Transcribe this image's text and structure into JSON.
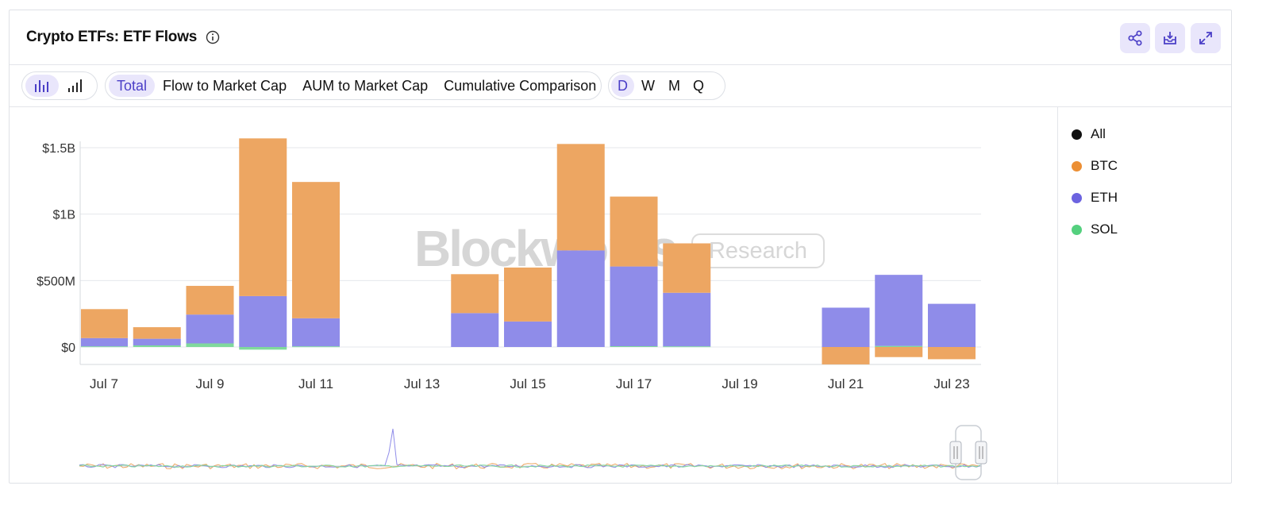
{
  "header": {
    "title": "Crypto ETFs: ETF Flows"
  },
  "toolbar": {
    "tabs": [
      "Total",
      "Flow to Market Cap",
      "AUM to Market Cap",
      "Cumulative Comparison"
    ],
    "periods": [
      "D",
      "W",
      "M",
      "Q"
    ]
  },
  "watermark": {
    "brand": "Blockworks",
    "sub": "Research"
  },
  "legend": [
    {
      "label": "All",
      "color": "#111111"
    },
    {
      "label": "BTC",
      "color": "#ec8f34"
    },
    {
      "label": "ETH",
      "color": "#6c63e0"
    },
    {
      "label": "SOL",
      "color": "#54d07e"
    }
  ],
  "chart_data": {
    "type": "bar",
    "stacked": true,
    "categories": [
      "Jul 7",
      "Jul 8",
      "Jul 9",
      "Jul 10",
      "Jul 11",
      "Jul 12",
      "Jul 13",
      "Jul 14",
      "Jul 15",
      "Jul 16",
      "Jul 17",
      "Jul 18",
      "Jul 19",
      "Jul 20",
      "Jul 21",
      "Jul 22",
      "Jul 23"
    ],
    "x_tick_labels": [
      "Jul 7",
      "Jul 9",
      "Jul 11",
      "Jul 13",
      "Jul 15",
      "Jul 17",
      "Jul 19",
      "Jul 21",
      "Jul 23"
    ],
    "y_ticks": [
      0,
      500,
      1000,
      1500
    ],
    "y_tick_labels": [
      "$0",
      "$500M",
      "$1B",
      "$1.5B"
    ],
    "ylim": [
      -130,
      1560
    ],
    "unit": "USD millions",
    "series": [
      {
        "name": "SOL",
        "color": "#7fd99c",
        "values": [
          5,
          12,
          27,
          -20,
          5,
          0,
          0,
          0,
          0,
          0,
          6,
          5,
          0,
          0,
          0,
          8,
          0
        ]
      },
      {
        "name": "ETH",
        "color": "#8f8ce9",
        "values": [
          62,
          50,
          217,
          383,
          211,
          0,
          0,
          255,
          192,
          727,
          600,
          403,
          0,
          0,
          296,
          535,
          325
        ]
      },
      {
        "name": "BTC",
        "color": "#eda662",
        "values": [
          218,
          87,
          216,
          1187,
          1026,
          0,
          0,
          293,
          406,
          801,
          526,
          372,
          0,
          0,
          -131,
          -76,
          -92
        ]
      }
    ]
  }
}
